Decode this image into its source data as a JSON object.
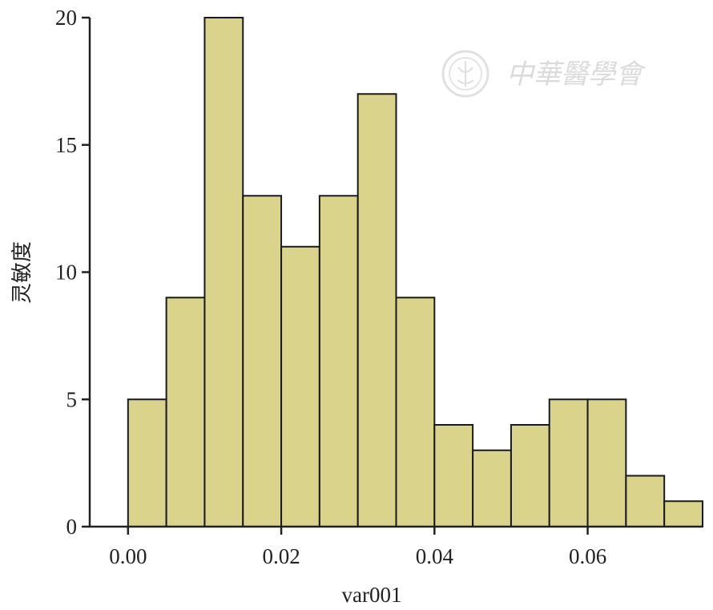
{
  "chart_data": {
    "type": "bar",
    "bin_edges": [
      0.0,
      0.005,
      0.01,
      0.015,
      0.02,
      0.025,
      0.03,
      0.035,
      0.04,
      0.045,
      0.05,
      0.055,
      0.06,
      0.065,
      0.07,
      0.075
    ],
    "values": [
      5,
      9,
      20,
      13,
      11,
      13,
      17,
      9,
      4,
      3,
      4,
      5,
      5,
      2,
      1
    ],
    "xlabel": "var001",
    "ylabel": "灵敏度",
    "xlim": [
      -0.005,
      0.075
    ],
    "ylim": [
      0,
      20
    ],
    "xticks": [
      0.0,
      0.02,
      0.04,
      0.06
    ],
    "xtick_labels": [
      "0.00",
      "0.02",
      "0.04",
      "0.06"
    ],
    "yticks": [
      0,
      5,
      10,
      15,
      20
    ],
    "ytick_labels": [
      "0",
      "5",
      "10",
      "15",
      "20"
    ],
    "bar_color": "#d9d38c",
    "edge_color": "#1a1a1a",
    "grid": false
  },
  "watermark": {
    "text": "中華醫學會"
  }
}
